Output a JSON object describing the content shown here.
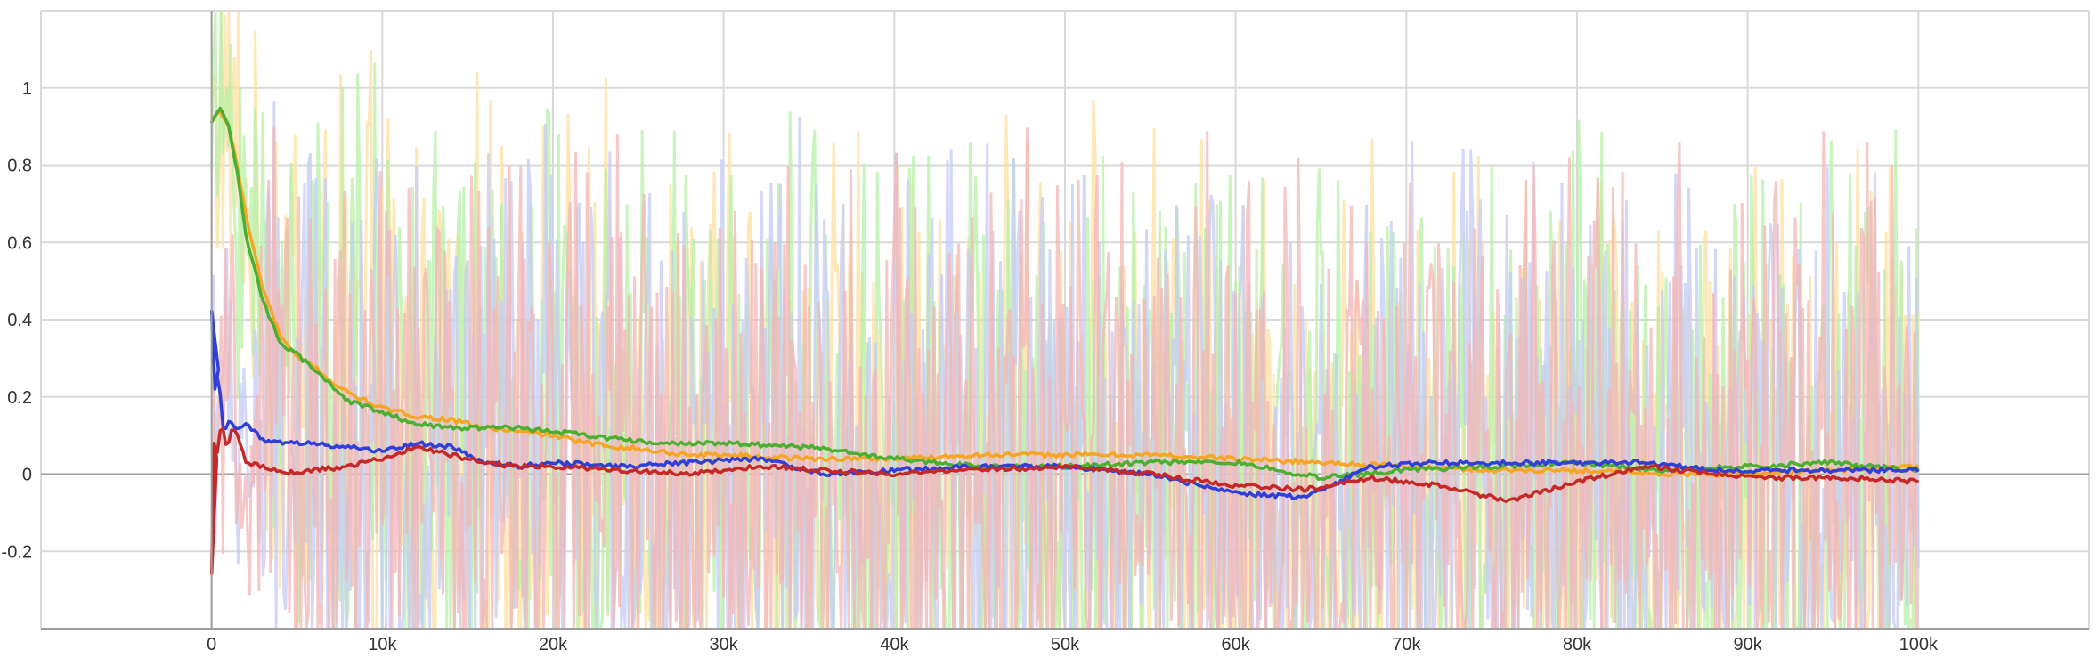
{
  "chart_data": {
    "type": "line",
    "title": "",
    "xlabel": "",
    "ylabel": "",
    "xlim": [
      -10000,
      110000
    ],
    "ylim": [
      -0.4,
      1.2
    ],
    "grid": true,
    "legend": "none",
    "x_ticks": [
      0,
      10000,
      20000,
      30000,
      40000,
      50000,
      60000,
      70000,
      80000,
      90000,
      100000
    ],
    "x_tick_labels": [
      "0",
      "10k",
      "20k",
      "30k",
      "40k",
      "50k",
      "60k",
      "70k",
      "80k",
      "90k",
      "100k"
    ],
    "y_ticks": [
      -0.2,
      0,
      0.2,
      0.4,
      0.6,
      0.8,
      1
    ],
    "y_tick_labels": [
      "-0.2",
      "0",
      "0.2",
      "0.4",
      "0.6",
      "0.8",
      "1"
    ],
    "series": [
      {
        "color": "#f6a623",
        "raw_color": "#ffe0a0",
        "x": [
          0,
          500,
          1000,
          1500,
          2000,
          3000,
          4000,
          5000,
          6000,
          7000,
          8000,
          10000,
          12000,
          14000,
          16000,
          18000,
          20000,
          22000,
          24000,
          26000,
          28000,
          30000,
          35000,
          40000,
          45000,
          50000,
          55000,
          60000,
          65000,
          70000,
          75000,
          80000,
          85000,
          90000,
          95000,
          100000
        ],
        "values": [
          0.91,
          0.94,
          0.9,
          0.8,
          0.67,
          0.48,
          0.36,
          0.3,
          0.28,
          0.24,
          0.21,
          0.17,
          0.15,
          0.14,
          0.12,
          0.11,
          0.1,
          0.08,
          0.07,
          0.06,
          0.05,
          0.05,
          0.04,
          0.04,
          0.05,
          0.05,
          0.05,
          0.04,
          0.03,
          0.02,
          0.01,
          0.01,
          0.0,
          0.0,
          0.01,
          0.02
        ]
      },
      {
        "color": "#4caf32",
        "raw_color": "#b7f0a8",
        "x": [
          0,
          500,
          1000,
          1500,
          2000,
          3000,
          4000,
          5000,
          6000,
          7000,
          8000,
          10000,
          12000,
          14000,
          16000,
          18000,
          20000,
          22000,
          24000,
          26000,
          28000,
          30000,
          35000,
          40000,
          45000,
          50000,
          55000,
          60000,
          65000,
          70000,
          75000,
          80000,
          85000,
          90000,
          95000,
          100000
        ],
        "values": [
          0.91,
          0.95,
          0.9,
          0.78,
          0.62,
          0.45,
          0.34,
          0.31,
          0.27,
          0.23,
          0.19,
          0.16,
          0.13,
          0.12,
          0.12,
          0.12,
          0.11,
          0.1,
          0.09,
          0.08,
          0.08,
          0.08,
          0.07,
          0.04,
          0.02,
          0.02,
          0.03,
          0.03,
          -0.01,
          0.01,
          0.02,
          0.03,
          0.01,
          0.02,
          0.03,
          0.01
        ]
      },
      {
        "color": "#2f3fd8",
        "raw_color": "#c6cbf5",
        "x": [
          0,
          200,
          400,
          700,
          1000,
          1500,
          2000,
          3000,
          4000,
          6000,
          8000,
          10000,
          12000,
          14000,
          16000,
          18000,
          20000,
          24000,
          28000,
          32000,
          36000,
          40000,
          45000,
          50000,
          55000,
          60000,
          64000,
          68000,
          72000,
          76000,
          80000,
          84000,
          88000,
          92000,
          96000,
          100000
        ],
        "values": [
          0.42,
          0.22,
          0.27,
          0.1,
          0.14,
          0.12,
          0.13,
          0.09,
          0.08,
          0.08,
          0.07,
          0.06,
          0.08,
          0.07,
          0.03,
          0.02,
          0.03,
          0.02,
          0.03,
          0.04,
          0.0,
          0.01,
          0.02,
          0.02,
          0.0,
          -0.05,
          -0.06,
          0.02,
          0.03,
          0.03,
          0.03,
          0.03,
          0.01,
          0.01,
          0.01,
          0.01
        ]
      },
      {
        "color": "#c62828",
        "raw_color": "#f3b6b6",
        "x": [
          0,
          150,
          300,
          600,
          900,
          1200,
          1500,
          2000,
          3000,
          4000,
          5000,
          6000,
          8000,
          10000,
          12000,
          14000,
          16000,
          18000,
          20000,
          24000,
          28000,
          32000,
          36000,
          40000,
          45000,
          50000,
          55000,
          60000,
          64000,
          68000,
          72000,
          76000,
          80000,
          84000,
          88000,
          92000,
          96000,
          100000
        ],
        "values": [
          -0.26,
          0.08,
          0.04,
          0.14,
          0.06,
          0.12,
          0.1,
          0.03,
          0.02,
          0.01,
          0.0,
          0.01,
          0.02,
          0.04,
          0.07,
          0.05,
          0.03,
          0.02,
          0.02,
          0.01,
          0.0,
          0.02,
          0.01,
          0.0,
          0.01,
          0.02,
          0.0,
          -0.03,
          -0.04,
          -0.01,
          -0.03,
          -0.07,
          -0.02,
          0.02,
          0.0,
          -0.01,
          -0.01,
          -0.02
        ]
      }
    ]
  }
}
